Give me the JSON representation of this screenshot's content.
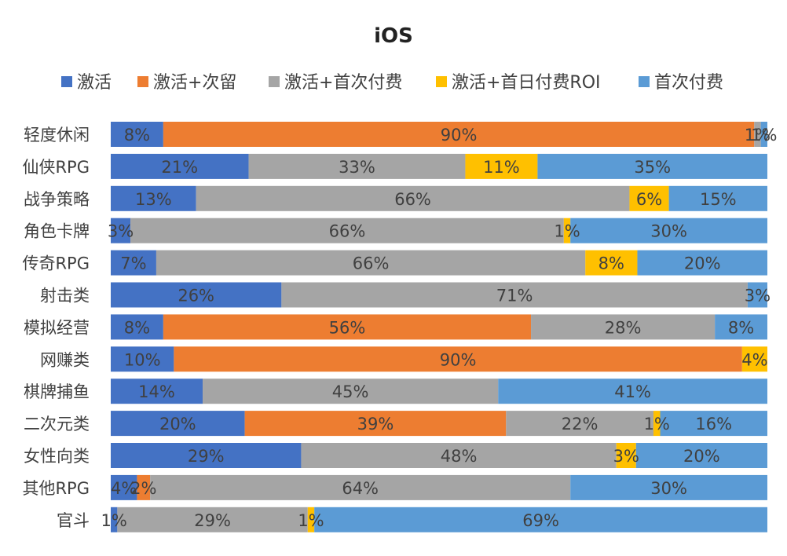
{
  "chart_data": {
    "type": "bar",
    "orientation": "horizontal",
    "stacked": true,
    "percent_stacked": true,
    "title": "iOS",
    "xlabel": "",
    "ylabel": "",
    "xlim": [
      0,
      100
    ],
    "grid": false,
    "legend_position": "top",
    "categories": [
      "轻度休闲",
      "仙侠RPG",
      "战争策略",
      "角色卡牌",
      "传奇RPG",
      "射击类",
      "模拟经营",
      "网赚类",
      "棋牌捕鱼",
      "二次元类",
      "女性向类",
      "其他RPG",
      "官斗"
    ],
    "series": [
      {
        "name": "激活",
        "color": "#4472C4",
        "values": [
          8,
          21,
          13,
          3,
          7,
          26,
          8,
          10,
          14,
          20,
          29,
          4,
          1
        ],
        "labels": [
          "8%",
          "21%",
          "13%",
          "3%",
          "7%",
          "26%",
          "8%",
          "10%",
          "14%",
          "20%",
          "29%",
          "4%",
          "1%"
        ]
      },
      {
        "name": "激活+次留",
        "color": "#ED7D31",
        "values": [
          90,
          0,
          0,
          0,
          0,
          0,
          56,
          90,
          0,
          39,
          0,
          2,
          0
        ],
        "labels": [
          "90%",
          "",
          "",
          "",
          "",
          "",
          "56%",
          "90%",
          "",
          "39%",
          "",
          "2%",
          ""
        ]
      },
      {
        "name": "激活+首次付费",
        "color": "#A5A5A5",
        "values": [
          1,
          33,
          66,
          66,
          66,
          71,
          28,
          0,
          45,
          22,
          48,
          64,
          29
        ],
        "labels": [
          "1%",
          "33%",
          "66%",
          "66%",
          "66%",
          "71%",
          "28%",
          "",
          "45%",
          "22%",
          "48%",
          "64%",
          "29%"
        ]
      },
      {
        "name": "激活+首日付费ROI",
        "color": "#FFC000",
        "values": [
          0,
          11,
          6,
          1,
          8,
          0,
          0,
          4,
          0,
          1,
          3,
          0,
          1
        ],
        "labels": [
          "",
          "11%",
          "6%",
          "1%",
          "8%",
          "",
          "",
          "4%",
          "",
          "1%",
          "3%",
          "",
          "1%"
        ]
      },
      {
        "name": "首次付费",
        "color": "#5B9BD5",
        "values": [
          1,
          35,
          15,
          30,
          20,
          3,
          8,
          0,
          41,
          16,
          20,
          30,
          69
        ],
        "labels": [
          "1%",
          "35%",
          "15%",
          "30%",
          "20%",
          "3%",
          "8%",
          "",
          "41%",
          "16%",
          "20%",
          "30%",
          "69%"
        ]
      }
    ]
  }
}
